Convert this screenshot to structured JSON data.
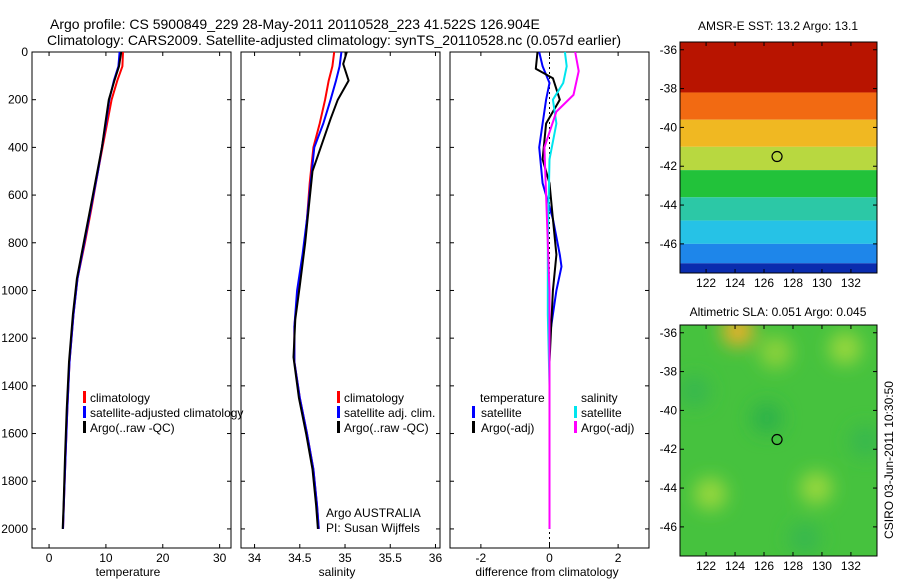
{
  "header": {
    "line1": "Argo profile: CS 5900849_229 28-May-2011 20110528_223 41.522S 126.904E",
    "line2": "Climatology: CARS2009. Satellite-adjusted climatology: synTS_20110528.nc (0.057d earlier)"
  },
  "side_label": "CSIRO 03-Jun-2011 10:30:50",
  "colors": {
    "climatology": "#ff0000",
    "satellite": "#0000ff",
    "argo": "#000000",
    "sal_sat": "#00e5ee",
    "sal_argo": "#ff00ff"
  },
  "chart_data": [
    {
      "type": "line",
      "id": "temperature",
      "xlabel": "temperature",
      "ylabel": "",
      "xlim": [
        -3,
        32
      ],
      "ylim": [
        2080,
        0
      ],
      "y_reversed": true,
      "xticks": [
        0,
        10,
        20,
        30
      ],
      "yticks": [
        0,
        200,
        400,
        600,
        800,
        1000,
        1200,
        1400,
        1600,
        1800,
        2000
      ],
      "legend": {
        "position": "lower-right",
        "entries": [
          "climatology",
          "satellite-adjusted climatology",
          "Argo(..raw -QC)"
        ]
      },
      "series": [
        {
          "name": "climatology",
          "color": "#ff0000",
          "x": [
            13.0,
            12.9,
            12.0,
            11.0,
            10.2,
            9.4,
            8.6,
            7.5,
            6.3,
            5.0,
            4.3,
            3.6,
            3.2,
            2.9,
            2.6,
            2.45
          ],
          "y": [
            0,
            60,
            120,
            200,
            300,
            400,
            500,
            650,
            800,
            950,
            1100,
            1300,
            1500,
            1700,
            1900,
            2000
          ]
        },
        {
          "name": "satellite-adjusted climatology",
          "color": "#0000ff",
          "x": [
            12.4,
            12.2,
            11.4,
            10.6,
            10.0,
            9.3,
            8.6,
            7.4,
            6.2,
            5.0,
            4.3,
            3.6,
            3.2,
            2.9,
            2.6,
            2.45
          ],
          "y": [
            0,
            60,
            120,
            200,
            300,
            400,
            500,
            650,
            800,
            950,
            1100,
            1300,
            1500,
            1700,
            1900,
            2000
          ]
        },
        {
          "name": "Argo(..raw -QC)",
          "color": "#000000",
          "x": [
            12.7,
            12.5,
            12.3,
            11.5,
            10.5,
            9.9,
            9.3,
            8.5,
            7.3,
            6.1,
            4.9,
            4.2,
            3.5,
            3.1,
            2.8,
            2.55,
            2.4
          ],
          "y": [
            0,
            30,
            60,
            120,
            200,
            300,
            400,
            500,
            650,
            800,
            950,
            1100,
            1300,
            1500,
            1700,
            1900,
            2000
          ]
        }
      ]
    },
    {
      "type": "line",
      "id": "salinity",
      "xlabel": "salinity",
      "ylabel": "",
      "xlim": [
        33.85,
        36.05
      ],
      "ylim": [
        2080,
        0
      ],
      "y_reversed": true,
      "xticks": [
        34,
        34.5,
        35,
        35.5,
        36
      ],
      "legend": {
        "position": "lower-right",
        "entries": [
          "climatology",
          "satellite adj. clim.",
          "Argo(..raw -QC)"
        ]
      },
      "annotation": [
        "Argo AUSTRALIA",
        "PI: Susan Wijffels"
      ],
      "series": [
        {
          "name": "climatology",
          "color": "#ff0000",
          "x": [
            34.88,
            34.86,
            34.82,
            34.78,
            34.72,
            34.65,
            34.61,
            34.58,
            34.54,
            34.48,
            34.44,
            34.44,
            34.5,
            34.58,
            34.65,
            34.69,
            34.71
          ],
          "y": [
            0,
            60,
            120,
            200,
            300,
            400,
            550,
            700,
            850,
            1000,
            1150,
            1300,
            1450,
            1600,
            1750,
            1900,
            2000
          ]
        },
        {
          "name": "satellite adj. clim.",
          "color": "#0000ff",
          "x": [
            34.96,
            34.94,
            34.9,
            34.84,
            34.76,
            34.66,
            34.62,
            34.58,
            34.53,
            34.47,
            34.44,
            34.44,
            34.5,
            34.58,
            34.65,
            34.69,
            34.71
          ],
          "y": [
            0,
            60,
            120,
            200,
            300,
            400,
            550,
            700,
            850,
            1000,
            1150,
            1300,
            1450,
            1600,
            1750,
            1900,
            2000
          ]
        },
        {
          "name": "Argo(..raw -QC)",
          "color": "#000000",
          "x": [
            35.02,
            34.98,
            35.04,
            34.92,
            34.84,
            34.75,
            34.64,
            34.6,
            34.56,
            34.5,
            34.45,
            34.43,
            34.49,
            34.57,
            34.64,
            34.68,
            34.7
          ],
          "y": [
            0,
            50,
            120,
            200,
            280,
            380,
            500,
            650,
            800,
            980,
            1120,
            1280,
            1450,
            1600,
            1750,
            1900,
            2000
          ]
        }
      ]
    },
    {
      "type": "line",
      "id": "difference",
      "xlabel": "difference from climatology",
      "ylabel": "",
      "xlim": [
        -2.9,
        2.9
      ],
      "ylim": [
        2080,
        0
      ],
      "y_reversed": true,
      "xticks": [
        -2,
        0,
        2
      ],
      "legend": {
        "position": "lower-center",
        "groups": [
          {
            "title": "temperature",
            "entries": [
              "satellite",
              "Argo(-adj)"
            ]
          },
          {
            "title": "salinity",
            "entries": [
              "satellite",
              "Argo(-adj)"
            ]
          }
        ]
      },
      "series": [
        {
          "name": "temperature satellite",
          "color": "#0000ff",
          "x": [
            -0.3,
            -0.2,
            0.0,
            -0.1,
            -0.2,
            -0.3,
            -0.2,
            0.1,
            0.3,
            0.35,
            0.2,
            0.1,
            0.0,
            0.0,
            0.0,
            0.0,
            0.0
          ],
          "y": [
            0,
            60,
            130,
            200,
            300,
            400,
            550,
            700,
            850,
            900,
            1000,
            1100,
            1200,
            1400,
            1600,
            1800,
            2000
          ]
        },
        {
          "name": "temperature Argo(-adj)",
          "color": "#000000",
          "x": [
            -0.35,
            -0.4,
            0.1,
            0.3,
            -0.1,
            -0.2,
            0.0,
            0.1,
            0.2,
            0.1,
            0.05,
            0.0,
            0.0,
            0.0,
            0.0
          ],
          "y": [
            0,
            70,
            110,
            200,
            300,
            450,
            550,
            700,
            850,
            1000,
            1150,
            1300,
            1500,
            1750,
            2000
          ]
        },
        {
          "name": "salinity satellite",
          "color": "#00e5ee",
          "x": [
            0.45,
            0.5,
            0.4,
            0.1,
            0.2,
            0.0,
            -0.05,
            -0.05,
            0.0,
            0.0,
            0.0
          ],
          "y": [
            0,
            60,
            130,
            200,
            300,
            450,
            800,
            1100,
            1400,
            1700,
            2000
          ]
        },
        {
          "name": "salinity Argo(-adj)",
          "color": "#ff00ff",
          "x": [
            0.75,
            0.85,
            0.7,
            0.2,
            -0.15,
            -0.1,
            -0.05,
            0.0,
            0.0,
            0.0
          ],
          "y": [
            0,
            80,
            180,
            250,
            400,
            600,
            800,
            1000,
            1400,
            2000
          ]
        }
      ]
    },
    {
      "type": "heatmap",
      "id": "sst_map",
      "title": "AMSR-E SST: 13.2 Argo: 13.1",
      "xlim": [
        120.2,
        133.8
      ],
      "ylim": [
        -47.5,
        -35.6
      ],
      "xticks": [
        122,
        124,
        126,
        128,
        130,
        132
      ],
      "yticks": [
        -36,
        -38,
        -40,
        -42,
        -44,
        -46
      ],
      "marker": {
        "x": 126.9,
        "y": -41.5
      },
      "bands": [
        {
          "lat_top": -35.6,
          "lat_bottom": -38.2,
          "color": "#b81400"
        },
        {
          "lat_top": -38.2,
          "lat_bottom": -39.6,
          "color": "#f26a12"
        },
        {
          "lat_top": -39.6,
          "lat_bottom": -41.0,
          "color": "#f0b822"
        },
        {
          "lat_top": -41.0,
          "lat_bottom": -42.2,
          "color": "#b8d840"
        },
        {
          "lat_top": -42.2,
          "lat_bottom": -43.6,
          "color": "#22c23a"
        },
        {
          "lat_top": -43.6,
          "lat_bottom": -44.8,
          "color": "#2cc8a6"
        },
        {
          "lat_top": -44.8,
          "lat_bottom": -46.0,
          "color": "#26c2e6"
        },
        {
          "lat_top": -46.0,
          "lat_bottom": -47.0,
          "color": "#1e86ea"
        },
        {
          "lat_top": -47.0,
          "lat_bottom": -47.5,
          "color": "#0a2cae"
        }
      ]
    },
    {
      "type": "heatmap",
      "id": "sla_map",
      "title": "Altimetric SLA: 0.051 Argo: 0.045",
      "xlim": [
        120.2,
        133.8
      ],
      "ylim": [
        -47.5,
        -35.6
      ],
      "xticks": [
        122,
        124,
        126,
        128,
        130,
        132
      ],
      "yticks": [
        -36,
        -38,
        -40,
        -42,
        -44,
        -46
      ],
      "marker": {
        "x": 126.9,
        "y": -41.5
      },
      "base_color": "#46c23e",
      "blobs": [
        {
          "lon": 124.2,
          "lat": -35.9,
          "color": "#e8b02a"
        },
        {
          "lon": 126.8,
          "lat": -37.0,
          "color": "#8ed23a"
        },
        {
          "lon": 122.3,
          "lat": -44.3,
          "color": "#9ad83c"
        },
        {
          "lon": 129.6,
          "lat": -44.0,
          "color": "#9ad83c"
        },
        {
          "lon": 131.6,
          "lat": -36.8,
          "color": "#9ad83c"
        },
        {
          "lon": 126.2,
          "lat": -40.4,
          "color": "#2fb24a"
        },
        {
          "lon": 121.2,
          "lat": -39.0,
          "color": "#38b84e"
        },
        {
          "lon": 128.8,
          "lat": -46.6,
          "color": "#38b84e"
        },
        {
          "lon": 133.0,
          "lat": -41.6,
          "color": "#38b84e"
        }
      ]
    }
  ]
}
